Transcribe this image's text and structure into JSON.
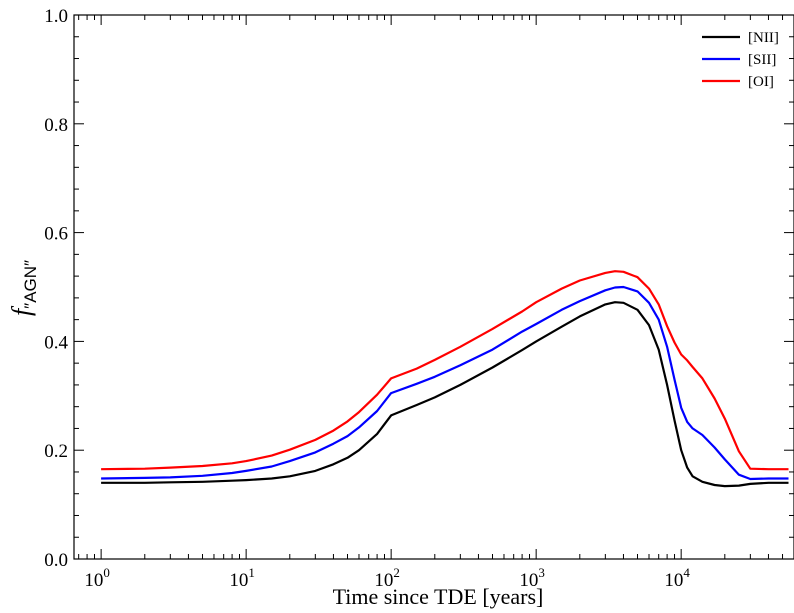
{
  "chart_data": {
    "type": "line",
    "title": "",
    "xlabel": "Time since TDE [years]",
    "ylabel": "f″AGN″",
    "ylabel_main": "f",
    "ylabel_sub": "″AGN″",
    "xscale": "log",
    "xlim": [
      0.65,
      60000
    ],
    "ylim": [
      0.0,
      1.0
    ],
    "x_ticks": [
      {
        "value": 1,
        "base": "10",
        "exp": "0"
      },
      {
        "value": 10,
        "base": "10",
        "exp": "1"
      },
      {
        "value": 100,
        "base": "10",
        "exp": "2"
      },
      {
        "value": 1000,
        "base": "10",
        "exp": "3"
      },
      {
        "value": 10000,
        "base": "10",
        "exp": "4"
      }
    ],
    "y_ticks": [
      {
        "value": 0.0,
        "label": "0.0"
      },
      {
        "value": 0.2,
        "label": "0.2"
      },
      {
        "value": 0.4,
        "label": "0.4"
      },
      {
        "value": 0.6,
        "label": "0.6"
      },
      {
        "value": 0.8,
        "label": "0.8"
      },
      {
        "value": 1.0,
        "label": "1.0"
      }
    ],
    "grid": false,
    "legend_position": "top-right",
    "series": [
      {
        "name": "[NII]",
        "color": "#000000",
        "x": [
          1,
          2,
          3,
          5,
          8,
          10,
          15,
          20,
          30,
          40,
          50,
          60,
          80,
          100,
          150,
          200,
          300,
          500,
          800,
          1000,
          1500,
          2000,
          3000,
          3500,
          4000,
          5000,
          6000,
          7000,
          8000,
          9000,
          10000,
          11000,
          12000,
          14000,
          17000,
          20000,
          25000,
          30000,
          40000,
          55000
        ],
        "y": [
          0.14,
          0.14,
          0.141,
          0.142,
          0.144,
          0.145,
          0.148,
          0.152,
          0.162,
          0.174,
          0.186,
          0.2,
          0.23,
          0.264,
          0.283,
          0.297,
          0.32,
          0.352,
          0.384,
          0.4,
          0.427,
          0.446,
          0.468,
          0.472,
          0.471,
          0.458,
          0.43,
          0.385,
          0.32,
          0.255,
          0.2,
          0.168,
          0.152,
          0.142,
          0.136,
          0.134,
          0.135,
          0.138,
          0.14,
          0.14
        ]
      },
      {
        "name": "[SII]",
        "color": "#0000ff",
        "x": [
          1,
          2,
          3,
          5,
          8,
          10,
          15,
          20,
          30,
          40,
          50,
          60,
          80,
          100,
          150,
          200,
          300,
          500,
          800,
          1000,
          1500,
          2000,
          3000,
          3500,
          4000,
          5000,
          6000,
          7000,
          8000,
          9000,
          10000,
          11000,
          12000,
          14000,
          17000,
          20000,
          25000,
          30000,
          40000,
          55000
        ],
        "y": [
          0.148,
          0.149,
          0.15,
          0.153,
          0.158,
          0.162,
          0.17,
          0.18,
          0.196,
          0.212,
          0.226,
          0.242,
          0.272,
          0.305,
          0.322,
          0.335,
          0.356,
          0.385,
          0.418,
          0.432,
          0.458,
          0.474,
          0.494,
          0.499,
          0.5,
          0.492,
          0.471,
          0.44,
          0.39,
          0.33,
          0.278,
          0.252,
          0.24,
          0.228,
          0.205,
          0.183,
          0.155,
          0.147,
          0.148,
          0.148
        ]
      },
      {
        "name": "[OI]",
        "color": "#ff0000",
        "x": [
          1,
          2,
          3,
          5,
          8,
          10,
          15,
          20,
          30,
          40,
          50,
          60,
          80,
          100,
          150,
          200,
          300,
          500,
          800,
          1000,
          1500,
          2000,
          3000,
          3500,
          4000,
          5000,
          6000,
          7000,
          8000,
          9000,
          10000,
          11000,
          12000,
          14000,
          17000,
          20000,
          25000,
          30000,
          40000,
          55000
        ],
        "y": [
          0.165,
          0.166,
          0.168,
          0.171,
          0.176,
          0.18,
          0.19,
          0.201,
          0.219,
          0.236,
          0.253,
          0.27,
          0.302,
          0.332,
          0.35,
          0.366,
          0.39,
          0.423,
          0.455,
          0.472,
          0.497,
          0.512,
          0.526,
          0.529,
          0.528,
          0.518,
          0.497,
          0.468,
          0.428,
          0.398,
          0.376,
          0.365,
          0.353,
          0.332,
          0.295,
          0.258,
          0.198,
          0.166,
          0.165,
          0.165
        ]
      }
    ]
  }
}
